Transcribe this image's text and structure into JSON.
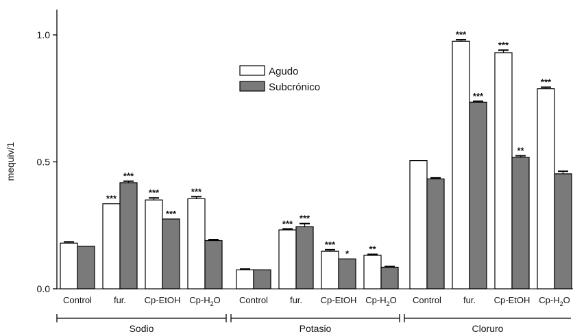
{
  "chart_data": {
    "type": "bar",
    "ylabel": "mequiv/1",
    "ylim": [
      0,
      1.1
    ],
    "yticks": [
      {
        "value": 0.0,
        "label": "0.0"
      },
      {
        "value": 0.5,
        "label": "0.5"
      },
      {
        "value": 1.0,
        "label": "1.0"
      }
    ],
    "legend": {
      "placement": "top-center",
      "entries": [
        {
          "label": "Agudo",
          "color": "#ffffff"
        },
        {
          "label": "Subcrónico",
          "color": "#7a7a7a"
        }
      ]
    },
    "groups": [
      {
        "name": "Sodio",
        "categories": [
          "Control",
          "fur.",
          "Cp-EtOH",
          "Cp-H2O"
        ],
        "series": [
          {
            "name": "Agudo",
            "values": [
              0.18,
              0.335,
              0.35,
              0.355
            ],
            "errors": [
              0.005,
              0,
              0.008,
              0.008
            ],
            "significance": [
              "",
              "***",
              "***",
              "***"
            ]
          },
          {
            "name": "Subcrónico",
            "values": [
              0.168,
              0.418,
              0.275,
              0.19
            ],
            "errors": [
              0,
              0.006,
              0,
              0.004
            ],
            "significance": [
              "",
              "***",
              "***",
              ""
            ]
          }
        ]
      },
      {
        "name": "Potasio",
        "categories": [
          "Control",
          "fur.",
          "Cp-EtOH",
          "Cp-H2O"
        ],
        "series": [
          {
            "name": "Agudo",
            "values": [
              0.075,
              0.232,
              0.148,
              0.132
            ],
            "errors": [
              0.003,
              0.004,
              0.006,
              0.004
            ],
            "significance": [
              "",
              "***",
              "***",
              "**"
            ]
          },
          {
            "name": "Subcrónico",
            "values": [
              0.075,
              0.245,
              0.118,
              0.085
            ],
            "errors": [
              0,
              0.012,
              0,
              0.003
            ],
            "significance": [
              "",
              "***",
              "*",
              ""
            ]
          }
        ]
      },
      {
        "name": "Cloruro",
        "categories": [
          "Control",
          "fur.",
          "Cp-EtOH",
          "Cp-H2O"
        ],
        "series": [
          {
            "name": "Agudo",
            "values": [
              0.505,
              0.975,
              0.93,
              0.788
            ],
            "errors": [
              0,
              0.006,
              0.01,
              0.006
            ],
            "significance": [
              "",
              "***",
              "***",
              "***"
            ]
          },
          {
            "name": "Subcrónico",
            "values": [
              0.433,
              0.735,
              0.518,
              0.453
            ],
            "errors": [
              0.004,
              0.004,
              0.006,
              0.01
            ],
            "significance": [
              "",
              "***",
              "**",
              ""
            ]
          }
        ]
      }
    ]
  }
}
